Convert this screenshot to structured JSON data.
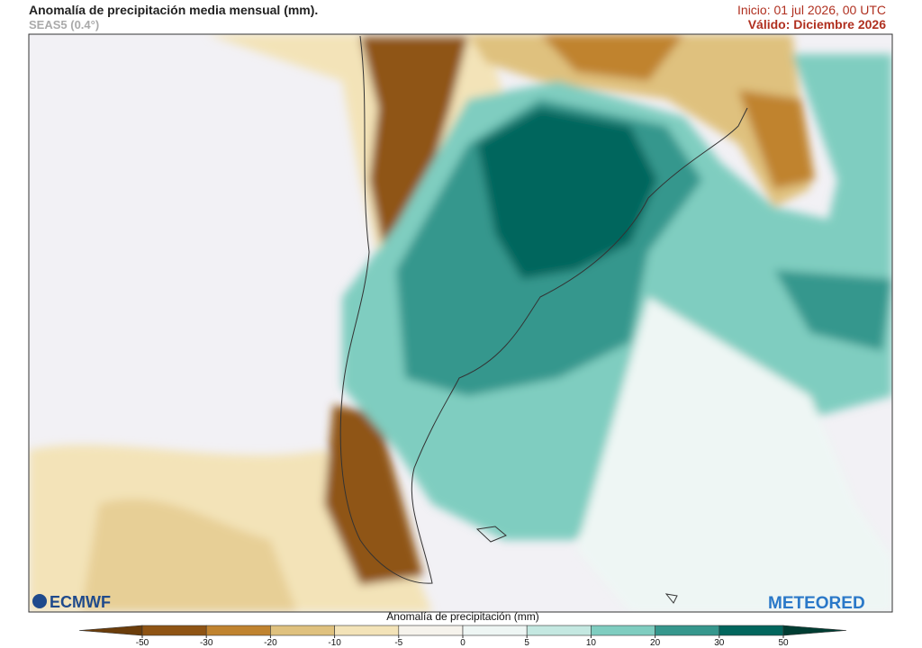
{
  "header": {
    "title": "Anomalía de precipitación media mensual (mm).",
    "subtitle": "SEAS5 (0.4°)",
    "init": "Inicio: 01 jul 2026, 00 UTC",
    "valid": "Válido: Diciembre 2026"
  },
  "logos": {
    "left": "ECMWF",
    "right": "METEORED"
  },
  "colorbar": {
    "label": "Anomalía de precipitación (mm)",
    "ticks": [
      -50,
      -30,
      -20,
      -10,
      -5,
      0,
      5,
      10,
      20,
      30,
      50
    ],
    "colors": [
      "#6b3d0b",
      "#8f5414",
      "#c0832f",
      "#dfc17e",
      "#f3e3b8",
      "#f6f3ec",
      "#eef6f4",
      "#c4e8e1",
      "#7fcdc0",
      "#36978d",
      "#02665d",
      "#013d33"
    ]
  }
}
